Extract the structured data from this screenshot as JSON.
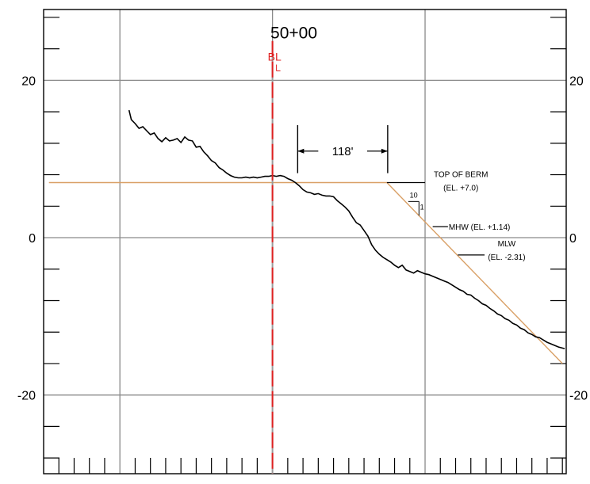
{
  "chart_data": {
    "type": "line",
    "title": "50+00",
    "centerline_label": "B/L",
    "xlabel": "",
    "ylabel": "",
    "xlim": [
      -300,
      385
    ],
    "ylim": [
      -30,
      29
    ],
    "x_ticks": [
      "-200",
      "0",
      "200"
    ],
    "y_ticks_left": [
      "20",
      "0",
      "-20"
    ],
    "y_ticks_right": [
      "20",
      "0",
      "-20"
    ],
    "grid": true,
    "colors": {
      "profile": "#000000",
      "design": "#d9a066",
      "centerline": "#e02020",
      "grid": "#8a8a8a",
      "frame": "#000000"
    },
    "series": [
      {
        "x": [
          -188,
          -185,
          -180,
          -175,
          -170,
          -165,
          -160,
          -155,
          -150,
          -145,
          -140,
          -135,
          -130,
          -125,
          -120,
          -115,
          -110,
          -105,
          -100,
          -95,
          -90,
          -85,
          -80,
          -75,
          -70,
          -65,
          -60,
          -55,
          -50,
          -45,
          -40,
          -35,
          -30,
          -25,
          -20,
          -15,
          -10,
          -5,
          0,
          5,
          10,
          15,
          20,
          25,
          30,
          35,
          40,
          45,
          50,
          55,
          60,
          65,
          70,
          75,
          80,
          85,
          90,
          95,
          100,
          105,
          110,
          115,
          120,
          125,
          130,
          135,
          140,
          145,
          150,
          155,
          160,
          165,
          170,
          175,
          180,
          185,
          190,
          195,
          200,
          205,
          210,
          215,
          220,
          225,
          230,
          235,
          240,
          245,
          250,
          255,
          260,
          265,
          270,
          275,
          280,
          285,
          290,
          295,
          300,
          305,
          310,
          315,
          320,
          325,
          330,
          335,
          340,
          345,
          350,
          355,
          360,
          365,
          370,
          375,
          383
        ],
        "y": [
          16.2,
          15.0,
          14.5,
          13.9,
          14.1,
          13.6,
          13.1,
          13.3,
          12.6,
          12.2,
          12.7,
          12.3,
          12.4,
          12.6,
          12.1,
          12.8,
          12.4,
          12.3,
          11.5,
          11.6,
          10.9,
          10.4,
          9.8,
          9.5,
          8.9,
          8.6,
          8.2,
          7.9,
          7.7,
          7.6,
          7.6,
          7.7,
          7.6,
          7.7,
          7.6,
          7.7,
          7.8,
          7.8,
          7.9,
          7.8,
          7.9,
          7.8,
          7.5,
          7.3,
          7.0,
          6.6,
          6.1,
          5.8,
          5.7,
          5.5,
          5.6,
          5.4,
          5.3,
          5.3,
          5.2,
          4.7,
          4.3,
          3.9,
          3.4,
          2.6,
          1.9,
          1.6,
          0.9,
          0.2,
          -0.9,
          -1.6,
          -2.1,
          -2.5,
          -2.8,
          -3.1,
          -3.5,
          -3.8,
          -3.5,
          -4.1,
          -4.3,
          -4.5,
          -4.2,
          -4.4,
          -4.6,
          -4.7,
          -4.9,
          -5.1,
          -5.3,
          -5.5,
          -5.7,
          -6.0,
          -6.3,
          -6.6,
          -6.8,
          -7.2,
          -7.3,
          -7.7,
          -8.0,
          -8.4,
          -8.6,
          -9.0,
          -9.3,
          -9.7,
          -9.9,
          -10.3,
          -10.5,
          -10.9,
          -11.1,
          -11.5,
          -11.7,
          -12.1,
          -12.3,
          -12.6,
          -12.7,
          -13.0,
          -13.3,
          -13.5,
          -13.7,
          -13.9,
          -14.1
        ]
      },
      {
        "x": [
          -293,
          150,
          380
        ],
        "y": [
          7.0,
          7.0,
          -16.0
        ]
      }
    ],
    "annotations": {
      "dimension_text": "118'",
      "berm_line1": "TOP OF BERM",
      "berm_line2": "(EL. +7.0)",
      "slope_run": "10",
      "slope_rise": "1",
      "mhw": "MHW (EL. +1.14)",
      "mlw_line1": "MLW",
      "mlw_line2": "(EL. -2.31)"
    }
  }
}
